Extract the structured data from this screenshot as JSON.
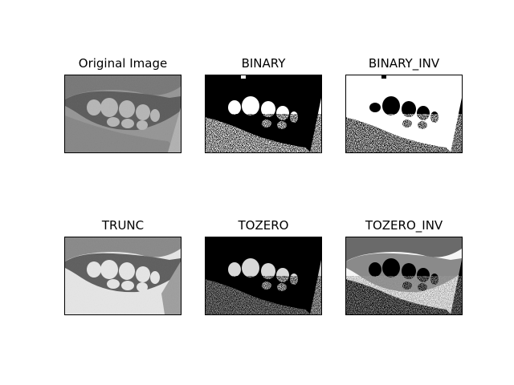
{
  "panels": [
    {
      "title": "Original Image"
    },
    {
      "title": "BINARY"
    },
    {
      "title": "BINARY_INV"
    },
    {
      "title": "TRUNC"
    },
    {
      "title": "TOZERO"
    },
    {
      "title": "TOZERO_INV"
    }
  ]
}
